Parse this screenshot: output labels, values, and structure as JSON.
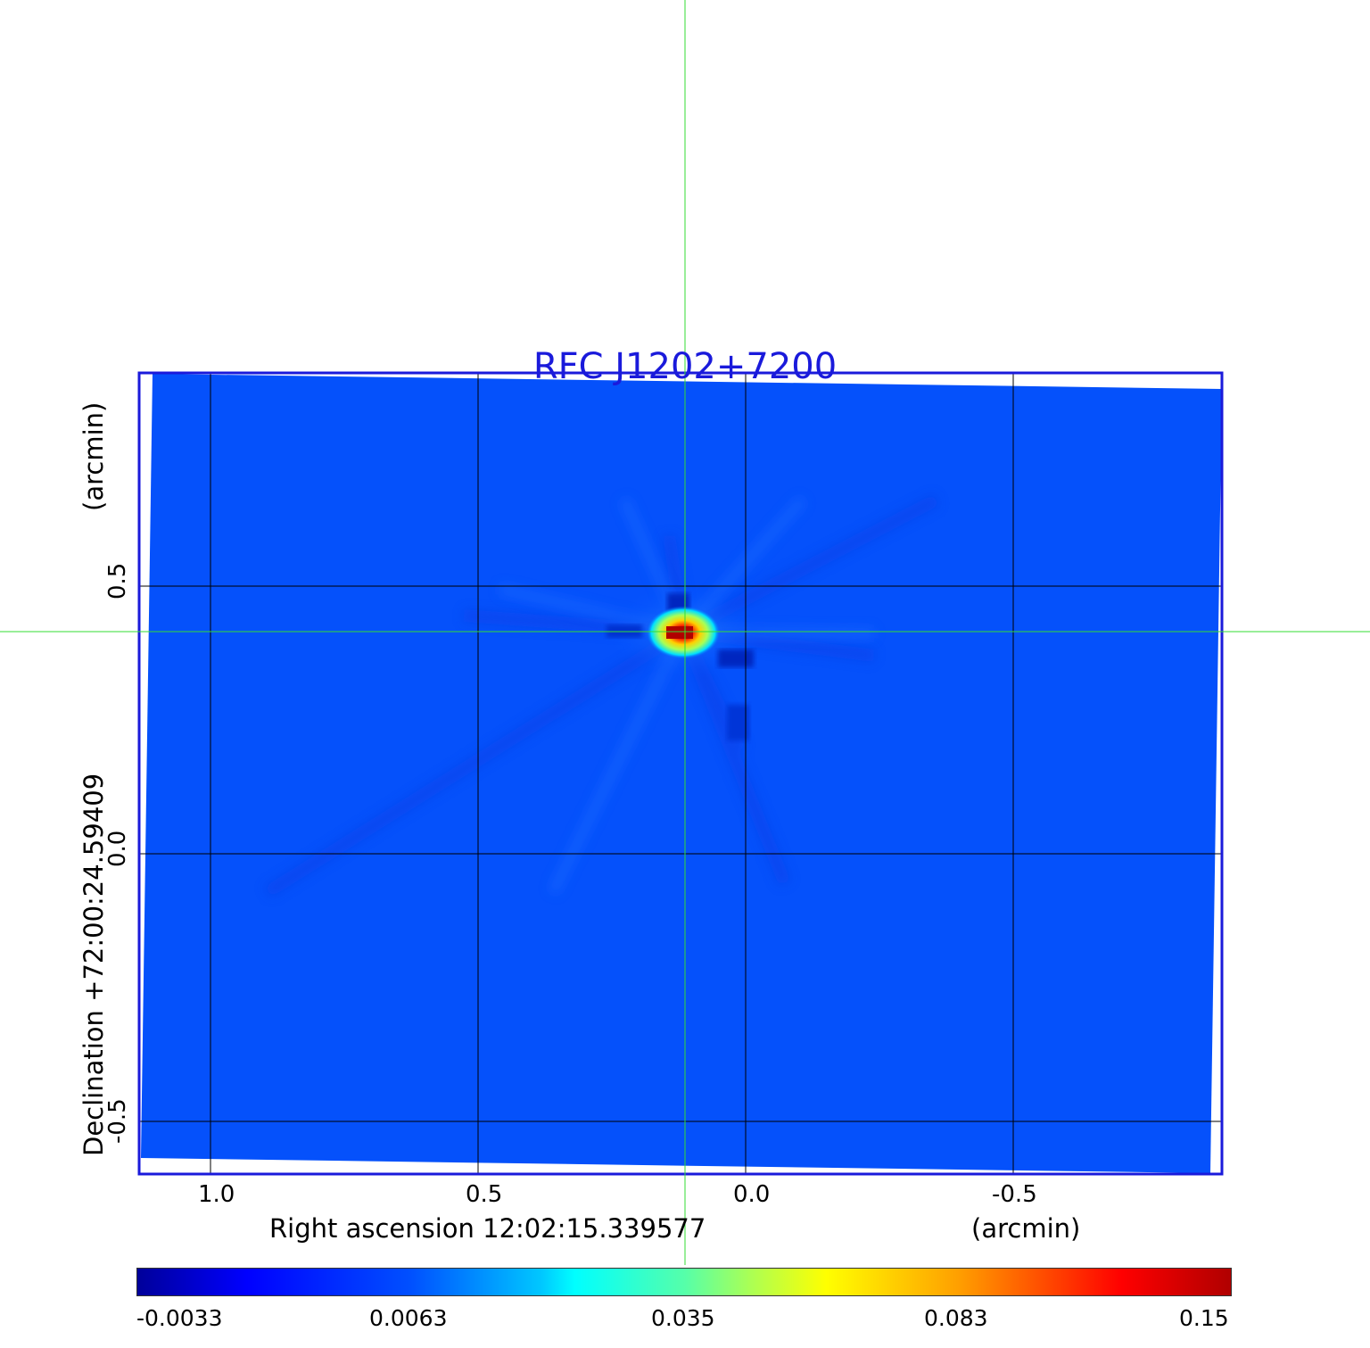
{
  "title": "RFC J1202+7200",
  "x_axis": {
    "label": "Right ascension  12:02:15.339577",
    "unit": "(arcmin)",
    "ticks": [
      "1.0",
      "0.5",
      "0.0",
      "-0.5"
    ]
  },
  "y_axis": {
    "label": "Declination  +72:00:24.59409",
    "unit": "(arcmin)",
    "ticks": [
      "0.5",
      "0.0",
      "-0.5"
    ]
  },
  "colorbar": {
    "ticks": [
      "-0.0033",
      "0.0063",
      "0.035",
      "0.083",
      "0.15"
    ],
    "colormap": "jet"
  },
  "colors": {
    "frame": "#1a1adb",
    "crosshair": "#33dd33",
    "grid": "#000000"
  }
}
